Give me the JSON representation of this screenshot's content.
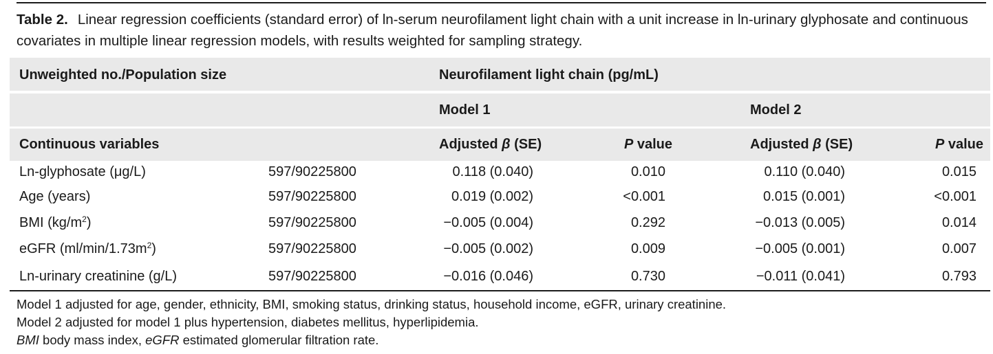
{
  "caption": {
    "label": "Table 2.",
    "text": "Linear regression coefficients (standard error) of ln-serum neurofilament light chain with a unit increase in ln-urinary glyphosate and continuous covariates in multiple linear regression models, with results weighted for sampling strategy."
  },
  "header": {
    "unweighted": "Unweighted no./Population size",
    "nfl": "Neurofilament light chain (pg/mL)",
    "model1": "Model 1",
    "model2": "Model 2",
    "continuous": "Continuous variables",
    "adjusted_prefix": "Adjusted ",
    "beta": "β",
    "se_suffix": " (SE)",
    "p": "P",
    "value_suffix": " value"
  },
  "rows": [
    {
      "variable": "Ln-glyphosate (μg/L)",
      "var_pre": "Ln-glyphosate (μg/L)",
      "sup": "",
      "var_post": "",
      "n": "597/90225800",
      "m1_beta": "0.118 (0.040)",
      "m1_p": "0.010",
      "m2_beta": "0.110 (0.040)",
      "m2_p": "0.015"
    },
    {
      "variable": "Age (years)",
      "var_pre": "Age (years)",
      "sup": "",
      "var_post": "",
      "n": "597/90225800",
      "m1_beta": "0.019 (0.002)",
      "m1_p": "<0.001",
      "m2_beta": "0.015 (0.001)",
      "m2_p": "<0.001"
    },
    {
      "variable": "BMI (kg/m2)",
      "var_pre": "BMI (kg/m",
      "sup": "2",
      "var_post": ")",
      "n": "597/90225800",
      "m1_beta": "−0.005 (0.004)",
      "m1_p": "0.292",
      "m2_beta": "−0.013 (0.005)",
      "m2_p": "0.014"
    },
    {
      "variable": "eGFR (ml/min/1.73m2)",
      "var_pre": "eGFR (ml/min/1.73m",
      "sup": "2",
      "var_post": ")",
      "n": "597/90225800",
      "m1_beta": "−0.005 (0.002)",
      "m1_p": "0.009",
      "m2_beta": "−0.005 (0.001)",
      "m2_p": "0.007"
    },
    {
      "variable": "Ln-urinary creatinine (g/L)",
      "var_pre": "Ln-urinary creatinine (g/L)",
      "sup": "",
      "var_post": "",
      "n": "597/90225800",
      "m1_beta": "−0.016 (0.046)",
      "m1_p": "0.730",
      "m2_beta": "−0.011 (0.041)",
      "m2_p": "0.793"
    }
  ],
  "notes": {
    "model1": "Model 1 adjusted for age, gender, ethnicity, BMI, smoking status, drinking status, household income, eGFR, urinary creatinine.",
    "model2": "Model 2 adjusted for model 1 plus hypertension, diabetes mellitus, hyperlipidemia.",
    "abbr_bmi": "BMI",
    "abbr_bmi_text": " body mass index, ",
    "abbr_egfr": "eGFR",
    "abbr_egfr_text": " estimated glomerular filtration rate."
  }
}
